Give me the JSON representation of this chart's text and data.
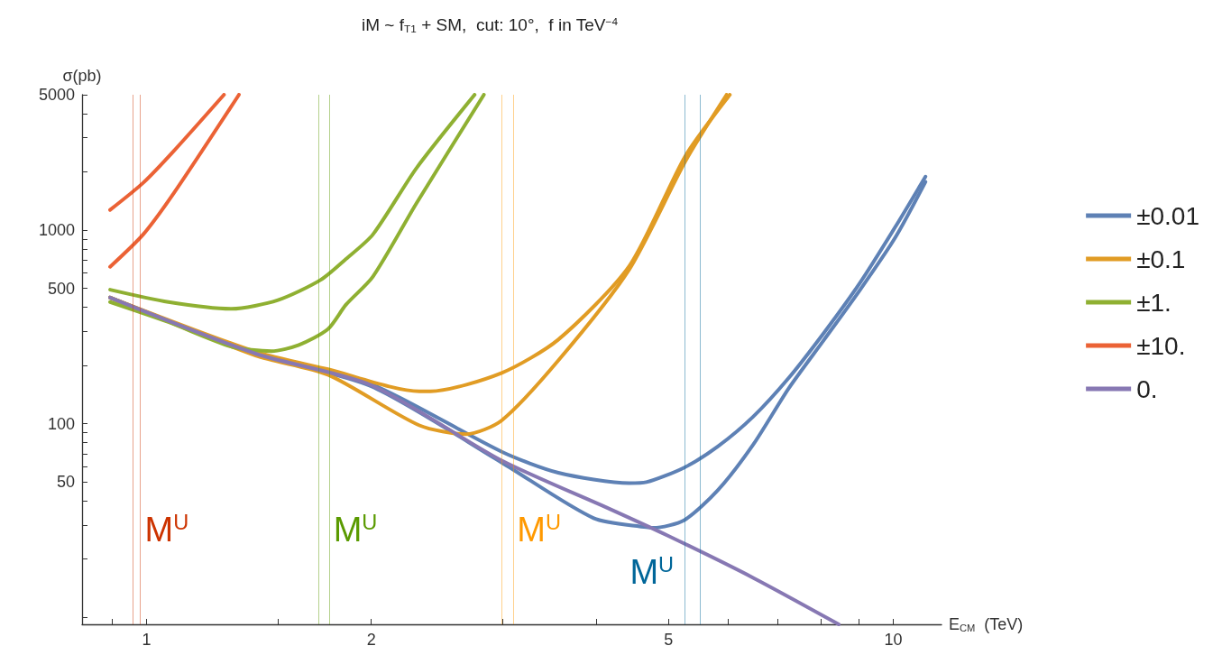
{
  "chart_data": {
    "type": "line",
    "title": "iM ~ f$_{T1}$ + SM,  cut: 10°,  f in TeV$^{−4}$",
    "xlabel": "E$_{CM}$  (TeV)",
    "ylabel": "σ(pb)",
    "log": "xy",
    "grid": false,
    "legend": "right",
    "marker": "none",
    "line_style": "solid",
    "xlim": [
      0.82,
      11.6
    ],
    "xticks": [
      {
        "value": 0.9,
        "label": null
      },
      1,
      {
        "value": 1.5,
        "label": null
      },
      2,
      {
        "value": 3,
        "label": null
      },
      {
        "value": 4,
        "label": null
      },
      5,
      {
        "value": 6,
        "label": null
      },
      {
        "value": 7,
        "label": null
      },
      {
        "value": 8,
        "label": null
      },
      {
        "value": 9,
        "label": null
      },
      10
    ],
    "ylim": [
      9.2,
      5000
    ],
    "yticks": [
      {
        "value": 10,
        "label": null
      },
      {
        "value": 20,
        "label": null
      },
      {
        "value": 30,
        "label": null
      },
      {
        "value": 40,
        "label": null
      },
      50,
      {
        "value": 60,
        "label": null
      },
      {
        "value": 70,
        "label": null
      },
      {
        "value": 80,
        "label": null
      },
      {
        "value": 90,
        "label": null
      },
      100,
      {
        "value": 200,
        "label": null
      },
      {
        "value": 300,
        "label": null
      },
      {
        "value": 400,
        "label": null
      },
      500,
      {
        "value": 600,
        "label": null
      },
      {
        "value": 700,
        "label": null
      },
      {
        "value": 800,
        "label": null
      },
      {
        "value": 900,
        "label": null
      },
      1000,
      {
        "value": 2000,
        "label": null
      },
      {
        "value": 3000,
        "label": null
      },
      {
        "value": 4000,
        "label": null
      },
      5000
    ],
    "series": [
      {
        "name": "±0.01",
        "color": "#5e81b5",
        "x": [
          0.894,
          1.4,
          2.0,
          2.99,
          3.56,
          4.43,
          4.67,
          5.25,
          5.82,
          6.49,
          7.24,
          8.08,
          9.01,
          10.05,
          11.04
        ],
        "values": [
          448,
          230,
          160,
          71.6,
          55.8,
          49.3,
          49.9,
          59.4,
          76.2,
          108.6,
          172,
          296,
          530,
          1032,
          1888
        ]
      },
      {
        "color": "#5e81b5",
        "x": [
          0.894,
          1.4,
          2.0,
          2.99,
          3.97,
          4.67,
          4.77,
          5.25,
          5.82,
          6.49,
          7.24,
          8.08,
          9.01,
          10.05,
          11.04
        ],
        "values": [
          448,
          230,
          156,
          63,
          32.5,
          29.2,
          29.0,
          31.8,
          45.3,
          77.9,
          152,
          272,
          487,
          910,
          1774
        ]
      },
      {
        "name": "±0.1",
        "color": "#e19c24",
        "x": [
          0.894,
          1.4,
          1.75,
          2.32,
          2.4,
          2.99,
          3.56,
          4.43,
          5.27,
          6.04
        ],
        "values": [
          448,
          235,
          191,
          147,
          147,
          183,
          272,
          652,
          2426,
          5000
        ]
      },
      {
        "color": "#e19c24",
        "x": [
          0.894,
          1.4,
          1.75,
          2.32,
          2.68,
          2.99,
          3.56,
          4.43,
          5.27,
          5.98
        ],
        "values": [
          448,
          225,
          179,
          98,
          88.3,
          104,
          212,
          626,
          2277,
          5000
        ]
      },
      {
        "name": "±1.",
        "color": "#8fb032",
        "x": [
          0.894,
          1.07,
          1.3,
          1.5,
          1.71,
          1.85,
          2.01,
          2.3,
          2.75
        ],
        "values": [
          492,
          425,
          392,
          435,
          552,
          709,
          949,
          2095,
          5000
        ]
      },
      {
        "color": "#8fb032",
        "x": [
          0.894,
          1.07,
          1.3,
          1.47,
          1.6,
          1.75,
          1.85,
          2.01,
          2.3,
          2.83
        ],
        "values": [
          425,
          335,
          250,
          237,
          255,
          308,
          412,
          575,
          1380,
          5000
        ]
      },
      {
        "name": "±10.",
        "color": "#eb6235",
        "x": [
          0.894,
          0.99,
          1.09,
          1.27
        ],
        "values": [
          1271,
          1754,
          2582,
          5000
        ]
      },
      {
        "color": "#eb6235",
        "x": [
          0.894,
          0.99,
          1.09,
          1.33
        ],
        "values": [
          646,
          949,
          1566,
          5000
        ]
      },
      {
        "name": "0.",
        "color": "#8778b3",
        "x": [
          0.894,
          1.4,
          2.0,
          2.99,
          4.19,
          4.99,
          6.49,
          8.45
        ],
        "values": [
          448,
          230,
          158,
          64.5,
          36.0,
          26.4,
          16.0,
          9.2
        ]
      }
    ],
    "ref_lines": [
      {
        "axis": "x",
        "value": 0.965,
        "color": "#cc3300"
      },
      {
        "axis": "x",
        "value": 0.984,
        "color": "#cc3300",
        "label": "M$^{U}$"
      },
      {
        "axis": "x",
        "value": 1.7,
        "color": "#5a9a00"
      },
      {
        "axis": "x",
        "value": 1.76,
        "color": "#5a9a00",
        "label": "M$^{U}$"
      },
      {
        "axis": "x",
        "value": 2.99,
        "color": "#ff9900"
      },
      {
        "axis": "x",
        "value": 3.1,
        "color": "#ff9900",
        "label": "M$^{U}$"
      },
      {
        "axis": "x",
        "value": 5.26,
        "color": "#006699",
        "label": "M$^{U}$"
      },
      {
        "axis": "x",
        "value": 5.51,
        "color": "#006699"
      }
    ]
  }
}
